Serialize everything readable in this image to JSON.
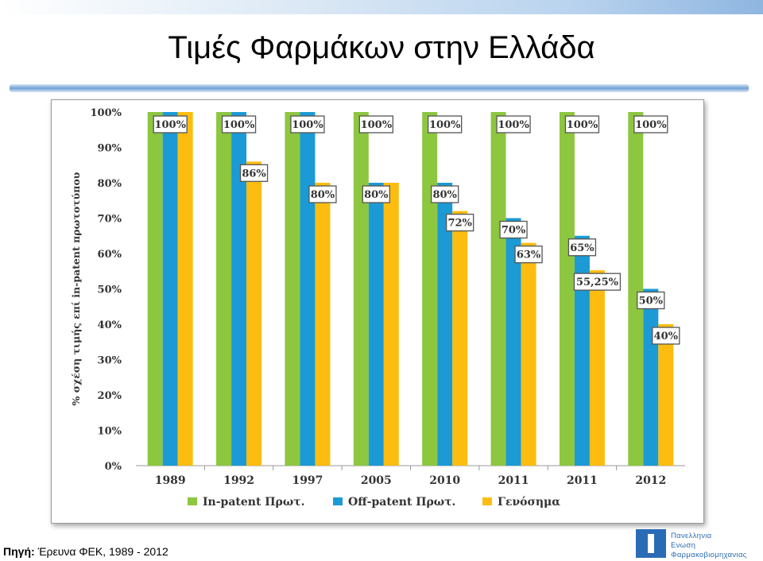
{
  "page": {
    "title": "Τιμές Φαρμάκων στην Ελλάδα",
    "source_label": "Πηγή:",
    "source_text": "Έρευνα ΦΕΚ, 1989 - 2012"
  },
  "logo": {
    "lines": [
      "Πανελληνια",
      "Ενωση",
      "Φαρμακοβιομηχανιας"
    ]
  },
  "chart_data": {
    "type": "bar",
    "categories": [
      "1989",
      "1992",
      "1997",
      "2005",
      "2010",
      "2011",
      "2011",
      "2012"
    ],
    "series": [
      {
        "name": "In-patent Πρωτ.",
        "color": "#8dc63f",
        "values": [
          100,
          100,
          100,
          100,
          100,
          100,
          100,
          100
        ]
      },
      {
        "name": "Off-patent Πρωτ.",
        "color": "#1b9ad6",
        "values": [
          100,
          100,
          100,
          80,
          80,
          70,
          65,
          50
        ]
      },
      {
        "name": "Γενόσημα",
        "color": "#fdbd10",
        "values": [
          100,
          86,
          80,
          80,
          72,
          63,
          55.25,
          40
        ]
      }
    ],
    "labels": [
      [
        "100%",
        "100%",
        "100%",
        "100%",
        "100%",
        "100%",
        "100%",
        "100%"
      ],
      [
        "86%",
        "80%",
        "80%",
        "80%",
        "70%",
        "65%",
        "50%"
      ],
      [
        "72%",
        "63%",
        "55,25%",
        "40%"
      ]
    ],
    "ylabel": "% σχέση τιμής επί in-patent πρωτοτύπου",
    "ylim": [
      0,
      100
    ],
    "yticks": [
      "0%",
      "10%",
      "20%",
      "30%",
      "40%",
      "50%",
      "60%",
      "70%",
      "80%",
      "90%",
      "100%"
    ],
    "legend_position": "bottom"
  }
}
